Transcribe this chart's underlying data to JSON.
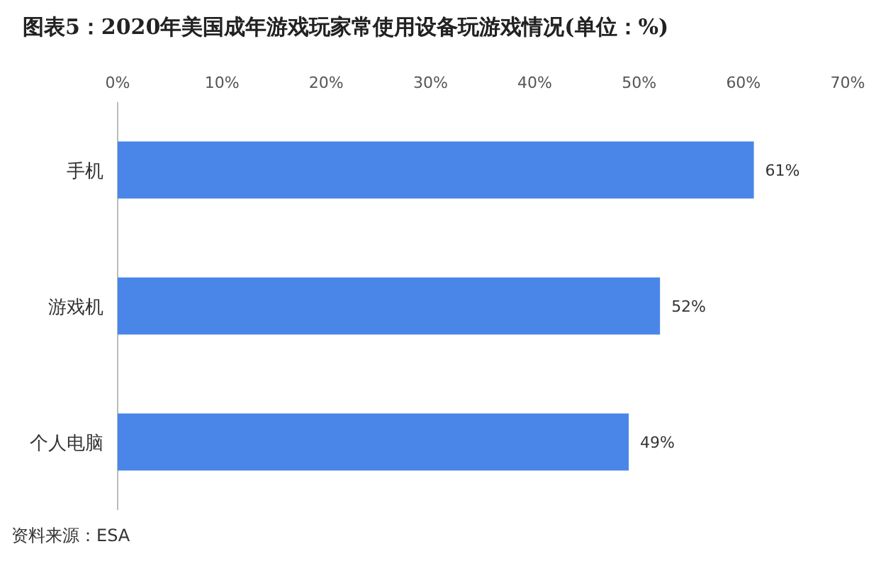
{
  "chart_data": {
    "type": "bar",
    "orientation": "horizontal",
    "title": "图表5：2020年美国成年游戏玩家常使用设备玩游戏情况(单位：%)",
    "categories": [
      "手机",
      "游戏机",
      "个人电脑"
    ],
    "values": [
      61,
      52,
      49
    ],
    "value_labels": [
      "61%",
      "52%",
      "49%"
    ],
    "color": "#4a86e8",
    "xlim": [
      0,
      70
    ],
    "xticks": [
      {
        "value": 0,
        "label": "0%"
      },
      {
        "value": 10,
        "label": "10%"
      },
      {
        "value": 20,
        "label": "20%"
      },
      {
        "value": 30,
        "label": "30%"
      },
      {
        "value": 40,
        "label": "40%"
      },
      {
        "value": 50,
        "label": "50%"
      },
      {
        "value": 60,
        "label": "60%"
      },
      {
        "value": 70,
        "label": "70%"
      }
    ],
    "grid": false,
    "annotations": [
      "资料来源：ESA"
    ]
  }
}
